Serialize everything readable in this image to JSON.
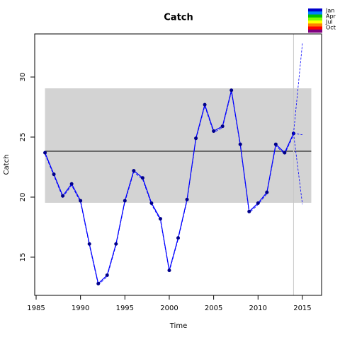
{
  "chart_data": {
    "type": "line",
    "title": "Catch",
    "x_label": "Time",
    "y_label": "Catch",
    "x": [
      1986,
      1987,
      1988,
      1989,
      1990,
      1991,
      1992,
      1993,
      1994,
      1995,
      1996,
      1997,
      1998,
      1999,
      2000,
      2001,
      2002,
      2003,
      2004,
      2005,
      2006,
      2007,
      2008,
      2009,
      2010,
      2011,
      2012,
      2013,
      2014
    ],
    "series": [
      {
        "color": "#0000ff",
        "marker_color": "#00008b",
        "values": [
          23.7,
          21.9,
          20.1,
          21.1,
          19.7,
          16.1,
          12.8,
          13.5,
          16.1,
          19.7,
          22.2,
          21.6,
          19.5,
          18.2,
          13.9,
          16.6,
          19.8,
          24.9,
          27.7,
          25.5,
          25.9,
          28.9,
          24.4,
          18.8,
          19.5,
          20.4,
          24.4,
          23.7,
          25.3
        ]
      }
    ],
    "forecasts": [
      {
        "x": [
          2014,
          2015
        ],
        "values": [
          25.3,
          32.8
        ],
        "color": "#0000ff"
      },
      {
        "x": [
          2014,
          2015
        ],
        "values": [
          25.3,
          25.2
        ],
        "color": "#0000ff"
      },
      {
        "x": [
          2014,
          2015
        ],
        "values": [
          25.3,
          19.4
        ],
        "color": "#0000ff"
      }
    ],
    "band": {
      "xlim": [
        1986,
        2016
      ],
      "ylim": [
        19.53,
        29.06
      ],
      "color": "#d3d3d3"
    },
    "hline": 23.82,
    "vline": 2014,
    "xlim": [
      1984.84,
      2017.16
    ],
    "ylim": [
      11.82,
      33.59
    ],
    "xticks": [
      1985,
      1990,
      1995,
      2000,
      2005,
      2010,
      2015
    ],
    "yticks": [
      15,
      20,
      25,
      30
    ],
    "legend": {
      "labels": [
        "Jan",
        "Apr",
        "Jul",
        "Oct"
      ],
      "colors": [
        "#0000cd",
        "#0080ff",
        "#00c000",
        "#80ff00",
        "#ffff00",
        "#ff8000",
        "#ff0000",
        "#800080"
      ]
    }
  }
}
